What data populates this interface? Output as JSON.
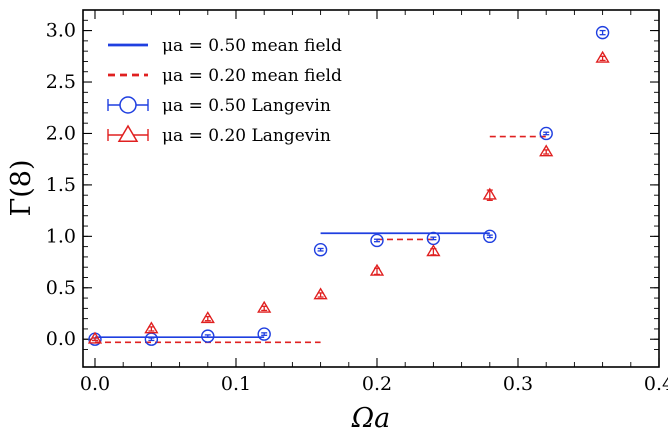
{
  "chart_data": {
    "type": "scatter",
    "xlabel": "Ωa",
    "ylabel": "Γ(8)",
    "xlim": [
      -0.0085,
      0.4
    ],
    "ylim": [
      -0.27,
      3.2
    ],
    "x_ticks": [
      "0.0",
      "0.1",
      "0.2",
      "0.3",
      "0.4"
    ],
    "y_ticks": [
      "0.0",
      "0.5",
      "1.0",
      "1.5",
      "2.0",
      "2.5",
      "3.0"
    ],
    "grid": false,
    "legend_position": "top-left",
    "colors": {
      "blue": "#1f3fe0",
      "red": "#e02020"
    },
    "series": [
      {
        "name": "μa = 0.50 mean field",
        "style": "line",
        "color": "#1f3fe0",
        "segments": [
          {
            "x": [
              0.0,
              0.12
            ],
            "y": 0.02
          },
          {
            "x": [
              0.16,
              0.28
            ],
            "y": 1.03
          }
        ]
      },
      {
        "name": "μa = 0.20 mean field",
        "style": "dashed",
        "color": "#e02020",
        "segments": [
          {
            "x": [
              0.0,
              0.16
            ],
            "y": -0.03
          },
          {
            "x": [
              0.2,
              0.24
            ],
            "y": 0.97
          },
          {
            "x": [
              0.28,
              0.32
            ],
            "y": 1.97
          }
        ]
      },
      {
        "name": "μa = 0.50 Langevin",
        "style": "circle",
        "color": "#1f3fe0",
        "points": [
          {
            "x": 0.0,
            "y": 0.0,
            "err": 0.01
          },
          {
            "x": 0.04,
            "y": 0.0,
            "err": 0.01
          },
          {
            "x": 0.08,
            "y": 0.03,
            "err": 0.01
          },
          {
            "x": 0.12,
            "y": 0.05,
            "err": 0.01
          },
          {
            "x": 0.16,
            "y": 0.87,
            "err": 0.01
          },
          {
            "x": 0.2,
            "y": 0.96,
            "err": 0.01
          },
          {
            "x": 0.24,
            "y": 0.98,
            "err": 0.01
          },
          {
            "x": 0.28,
            "y": 1.0,
            "err": 0.01
          },
          {
            "x": 0.32,
            "y": 2.0,
            "err": 0.01
          },
          {
            "x": 0.36,
            "y": 2.98,
            "err": 0.02
          }
        ]
      },
      {
        "name": "μa = 0.20 Langevin",
        "style": "triangle",
        "color": "#e02020",
        "points": [
          {
            "x": 0.0,
            "y": 0.0,
            "err": 0.01
          },
          {
            "x": 0.04,
            "y": 0.1,
            "err": 0.02
          },
          {
            "x": 0.08,
            "y": 0.2,
            "err": 0.02
          },
          {
            "x": 0.12,
            "y": 0.3,
            "err": 0.02
          },
          {
            "x": 0.16,
            "y": 0.43,
            "err": 0.02
          },
          {
            "x": 0.2,
            "y": 0.66,
            "err": 0.03
          },
          {
            "x": 0.24,
            "y": 0.85,
            "err": 0.03
          },
          {
            "x": 0.28,
            "y": 1.4,
            "err": 0.05
          },
          {
            "x": 0.32,
            "y": 1.82,
            "err": 0.02
          },
          {
            "x": 0.36,
            "y": 2.73,
            "err": 0.02
          }
        ]
      }
    ]
  }
}
